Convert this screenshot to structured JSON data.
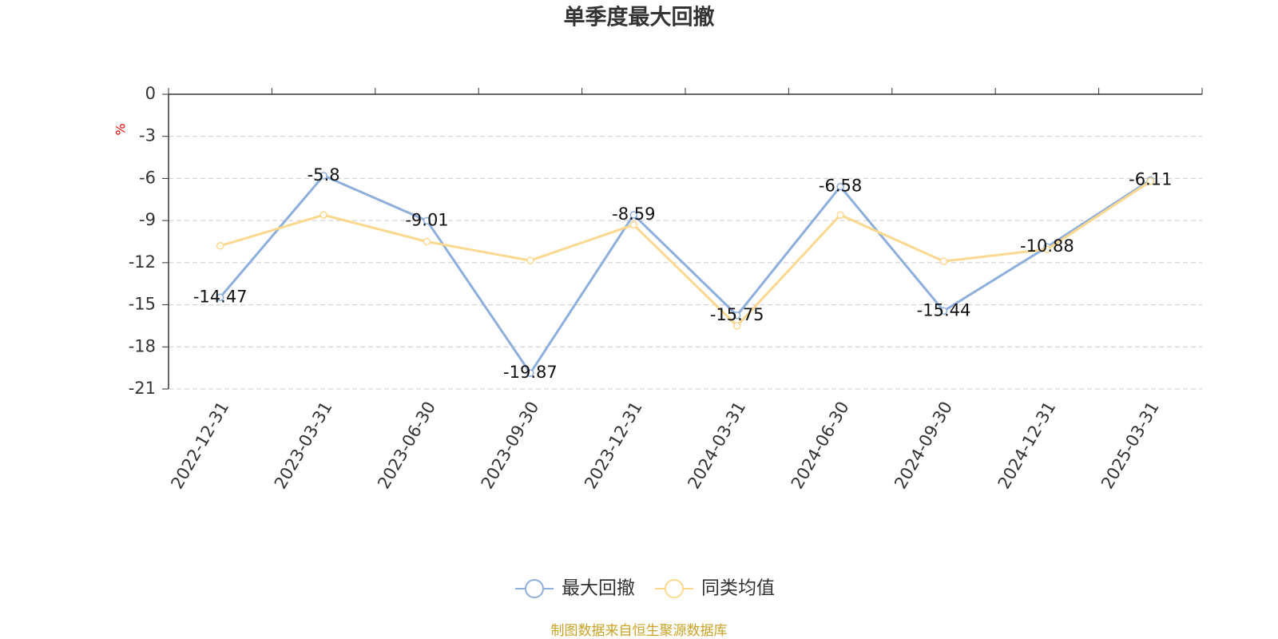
{
  "chart_data": {
    "type": "line",
    "title": "单季度最大回撤",
    "ylabel": "%",
    "categories": [
      "2022-12-31",
      "2023-03-31",
      "2023-06-30",
      "2023-09-30",
      "2023-12-31",
      "2024-03-31",
      "2024-06-30",
      "2024-09-30",
      "2024-12-31",
      "2025-03-31"
    ],
    "series": [
      {
        "name": "最大回撤",
        "color": "#8eafdb",
        "values": [
          -14.47,
          -5.8,
          -9.01,
          -19.87,
          -8.59,
          -15.75,
          -6.58,
          -15.44,
          -10.88,
          -6.11
        ],
        "show_labels": true
      },
      {
        "name": "同类均值",
        "color": "#fbd88f",
        "values": [
          -10.8,
          -8.6,
          -10.5,
          -11.85,
          -9.3,
          -16.5,
          -8.6,
          -11.9,
          -11.05,
          -6.2
        ],
        "show_labels": false
      }
    ],
    "ylim": [
      -21,
      0
    ],
    "yticks": [
      0,
      -3,
      -6,
      -9,
      -12,
      -15,
      -18,
      -21
    ],
    "grid": true,
    "source": "制图数据来自恒生聚源数据库"
  }
}
